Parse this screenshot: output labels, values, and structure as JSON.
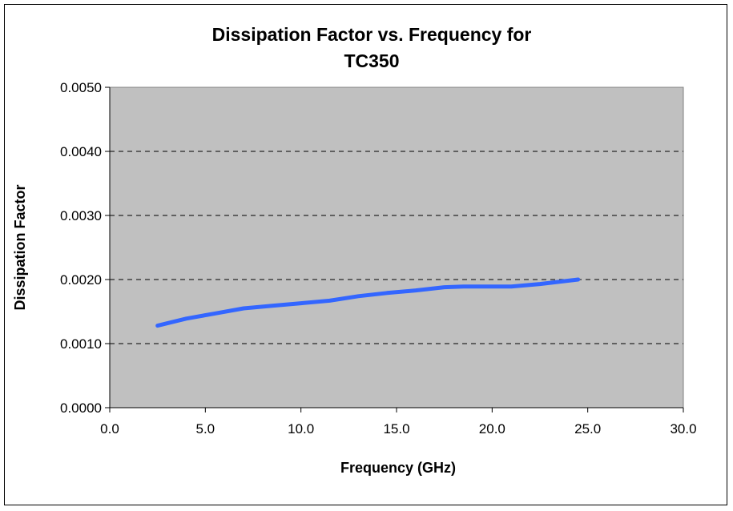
{
  "chart_data": {
    "type": "line",
    "title_lines": [
      "Dissipation Factor vs. Frequency for",
      "TC350"
    ],
    "xlabel": "Frequency (GHz)",
    "ylabel": "Dissipation Factor",
    "xlim": [
      0,
      30
    ],
    "ylim": [
      0,
      0.005
    ],
    "x_ticks": [
      "0.0",
      "5.0",
      "10.0",
      "15.0",
      "20.0",
      "25.0",
      "30.0"
    ],
    "y_ticks": [
      "0.0000",
      "0.0010",
      "0.0020",
      "0.0030",
      "0.0040",
      "0.0050"
    ],
    "grid": "horizontal dashed",
    "plot_background": "#c0c0c0",
    "series": [
      {
        "color": "#3366ff",
        "x": [
          2.5,
          4.0,
          5.5,
          7.0,
          8.5,
          10.0,
          11.5,
          13.0,
          14.5,
          16.0,
          17.5,
          18.5,
          20.0,
          21.0,
          22.5,
          24.5
        ],
        "y": [
          0.00128,
          0.00139,
          0.00147,
          0.00155,
          0.00159,
          0.00163,
          0.00167,
          0.00174,
          0.00179,
          0.00183,
          0.00188,
          0.00189,
          0.00189,
          0.00189,
          0.00193,
          0.002
        ]
      }
    ]
  }
}
